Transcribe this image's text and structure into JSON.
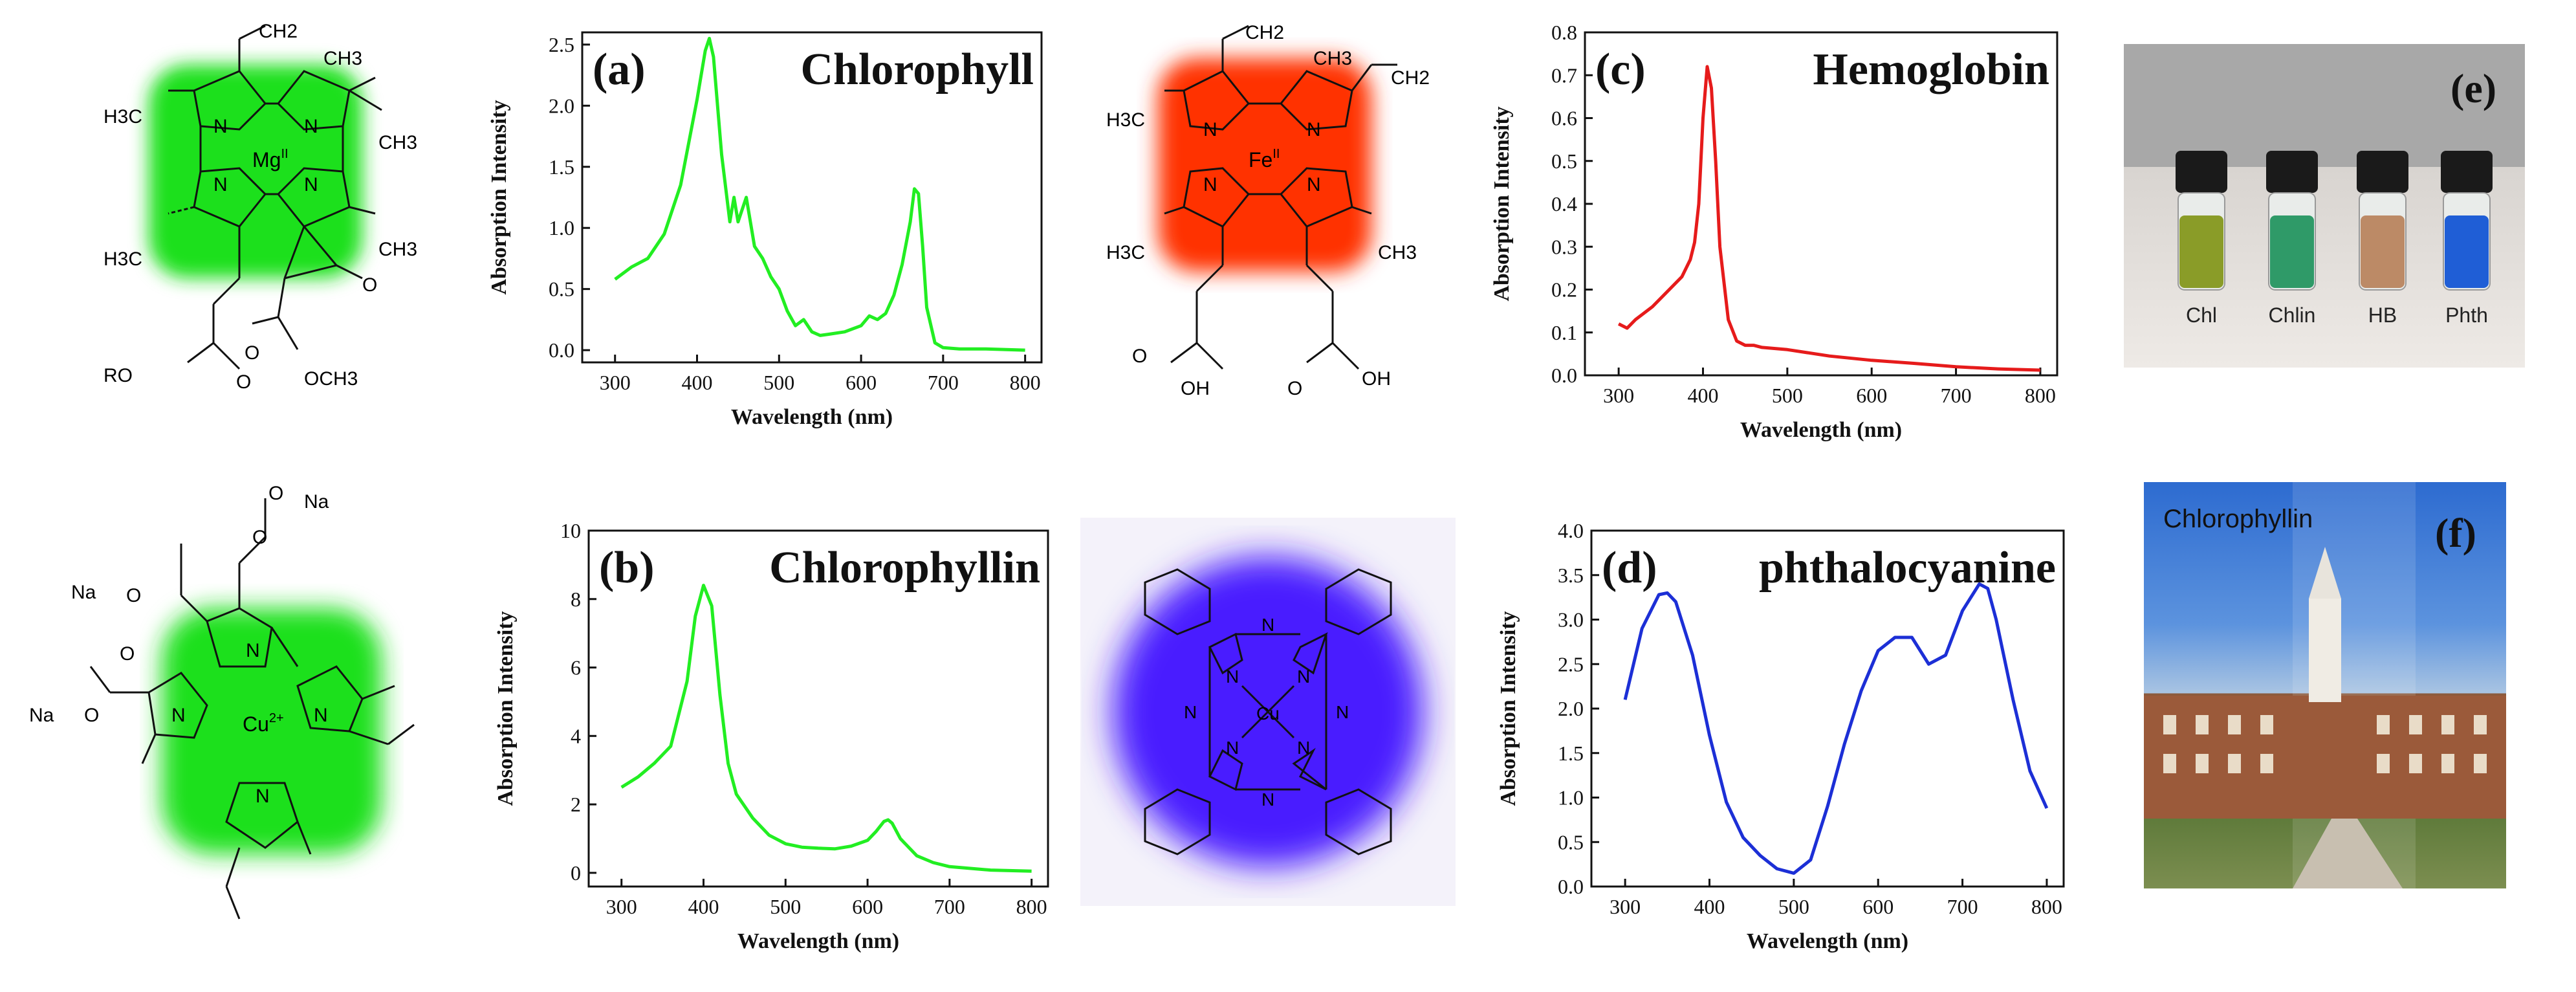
{
  "chart_data": [
    {
      "type": "line",
      "panel": "(a)",
      "title": "Chlorophyll",
      "xlabel": "Wavelength (nm)",
      "ylabel": "Absorption Intensity",
      "xlim": [
        260,
        820
      ],
      "ylim": [
        -0.1,
        2.6
      ],
      "xticks": [
        300,
        400,
        500,
        600,
        700,
        800
      ],
      "yticks": [
        0.0,
        0.5,
        1.0,
        1.5,
        2.0,
        2.5
      ],
      "ytick_labels": [
        "0.0",
        "0.5",
        "1.0",
        "1.5",
        "2.0",
        "2.5"
      ],
      "color": "#22ee22",
      "x": [
        300,
        320,
        340,
        360,
        380,
        400,
        410,
        415,
        420,
        430,
        440,
        445,
        450,
        455,
        460,
        470,
        480,
        490,
        500,
        510,
        520,
        530,
        540,
        550,
        560,
        580,
        600,
        610,
        620,
        630,
        640,
        650,
        660,
        665,
        670,
        675,
        680,
        690,
        700,
        720,
        750,
        800
      ],
      "y": [
        0.58,
        0.68,
        0.75,
        0.95,
        1.35,
        2.05,
        2.45,
        2.55,
        2.4,
        1.6,
        1.05,
        1.25,
        1.05,
        1.15,
        1.25,
        0.85,
        0.75,
        0.6,
        0.5,
        0.32,
        0.2,
        0.25,
        0.15,
        0.12,
        0.13,
        0.15,
        0.2,
        0.28,
        0.25,
        0.3,
        0.45,
        0.7,
        1.05,
        1.32,
        1.28,
        0.85,
        0.35,
        0.06,
        0.02,
        0.01,
        0.01,
        0.0
      ]
    },
    {
      "type": "line",
      "panel": "(b)",
      "title": "Chlorophyllin",
      "xlabel": "Wavelength (nm)",
      "ylabel": "Absorption Intensity",
      "xlim": [
        260,
        820
      ],
      "ylim": [
        -0.4,
        10
      ],
      "xticks": [
        300,
        400,
        500,
        600,
        700,
        800
      ],
      "yticks": [
        0,
        2,
        4,
        6,
        8,
        10
      ],
      "ytick_labels": [
        "0",
        "2",
        "4",
        "6",
        "8",
        "10"
      ],
      "color": "#22ee22",
      "x": [
        300,
        320,
        340,
        360,
        380,
        390,
        400,
        410,
        420,
        430,
        440,
        460,
        480,
        500,
        520,
        540,
        560,
        580,
        600,
        610,
        620,
        625,
        630,
        640,
        660,
        680,
        700,
        750,
        800
      ],
      "y": [
        2.5,
        2.8,
        3.2,
        3.7,
        5.6,
        7.5,
        8.4,
        7.8,
        5.2,
        3.2,
        2.3,
        1.6,
        1.1,
        0.85,
        0.75,
        0.72,
        0.7,
        0.78,
        0.95,
        1.2,
        1.5,
        1.55,
        1.45,
        1.0,
        0.5,
        0.3,
        0.18,
        0.08,
        0.05
      ]
    },
    {
      "type": "line",
      "panel": "(c)",
      "title": "Hemoglobin",
      "xlabel": "Wavelength (nm)",
      "ylabel": "Absorption Intensity",
      "xlim": [
        260,
        820
      ],
      "ylim": [
        0.0,
        0.8
      ],
      "xticks": [
        300,
        400,
        500,
        600,
        700,
        800
      ],
      "yticks": [
        0.0,
        0.1,
        0.2,
        0.3,
        0.4,
        0.5,
        0.6,
        0.7,
        0.8
      ],
      "ytick_labels": [
        "0.0",
        "0.1",
        "0.2",
        "0.3",
        "0.4",
        "0.5",
        "0.6",
        "0.7",
        "0.8"
      ],
      "color": "#e61b1b",
      "x": [
        300,
        310,
        320,
        340,
        360,
        375,
        385,
        390,
        395,
        400,
        405,
        410,
        415,
        420,
        430,
        440,
        450,
        460,
        470,
        500,
        550,
        600,
        650,
        700,
        750,
        800
      ],
      "y": [
        0.12,
        0.11,
        0.13,
        0.16,
        0.2,
        0.23,
        0.27,
        0.31,
        0.4,
        0.6,
        0.72,
        0.67,
        0.5,
        0.3,
        0.13,
        0.08,
        0.07,
        0.07,
        0.065,
        0.06,
        0.045,
        0.035,
        0.028,
        0.02,
        0.015,
        0.012
      ]
    },
    {
      "type": "line",
      "panel": "(d)",
      "title": "phthalocyanine",
      "xlabel": "Wavelength (nm)",
      "ylabel": "Absorption Intensity",
      "xlim": [
        260,
        820
      ],
      "ylim": [
        0.0,
        4.0
      ],
      "xticks": [
        300,
        400,
        500,
        600,
        700,
        800
      ],
      "yticks": [
        0.0,
        0.5,
        1.0,
        1.5,
        2.0,
        2.5,
        3.0,
        3.5,
        4.0
      ],
      "ytick_labels": [
        "0.0",
        "0.5",
        "1.0",
        "1.5",
        "2.0",
        "2.5",
        "3.0",
        "3.5",
        "4.0"
      ],
      "color": "#1c2fd6",
      "x": [
        300,
        320,
        340,
        350,
        360,
        380,
        400,
        420,
        440,
        460,
        480,
        500,
        520,
        540,
        560,
        580,
        600,
        620,
        640,
        660,
        680,
        700,
        720,
        730,
        740,
        760,
        780,
        800
      ],
      "y": [
        2.1,
        2.9,
        3.28,
        3.3,
        3.2,
        2.6,
        1.7,
        0.95,
        0.55,
        0.35,
        0.2,
        0.15,
        0.3,
        0.9,
        1.6,
        2.2,
        2.65,
        2.8,
        2.8,
        2.5,
        2.6,
        3.1,
        3.4,
        3.35,
        3.0,
        2.1,
        1.3,
        0.88
      ]
    }
  ],
  "panel_e": {
    "label": "(e)",
    "vials": [
      {
        "name": "Chl",
        "color": "#8a9c28"
      },
      {
        "name": "Chlin",
        "color": "#2f9a68"
      },
      {
        "name": "HB",
        "color": "#bc8a66"
      },
      {
        "name": "Phth",
        "color": "#1f5ed6"
      }
    ]
  },
  "panel_f": {
    "label": "(f)",
    "caption": "Chlorophyllin"
  },
  "molecules": {
    "chlorophyll": {
      "metal": "Mg",
      "metal_sup": "II",
      "labels": [
        "CH2",
        "CH3",
        "H3C",
        "CH3",
        "N",
        "N",
        "N",
        "N",
        "H3C",
        "CH3",
        "RO",
        "O",
        "O",
        "OCH3",
        "O"
      ]
    },
    "heme": {
      "metal": "Fe",
      "metal_sup": "II",
      "labels": [
        "CH2",
        "CH3",
        "CH2",
        "H3C",
        "N",
        "N",
        "N",
        "N",
        "H3C",
        "CH3",
        "O",
        "OH",
        "O",
        "OH"
      ]
    },
    "chlorophyllin": {
      "metal": "Cu",
      "metal_sup": "2+",
      "labels": [
        "O",
        "O",
        "Na",
        "Na",
        "O",
        "Na",
        "O",
        "O",
        "N",
        "N",
        "N",
        "N"
      ]
    },
    "phthalocyanine": {
      "metal": "Cu",
      "labels": [
        "N",
        "N",
        "N",
        "N",
        "N",
        "N",
        "N",
        "N"
      ]
    }
  },
  "colors": {
    "green_glow": "#00e000",
    "red_glow": "#ff3000",
    "blue_glow": "#4a1fff"
  }
}
